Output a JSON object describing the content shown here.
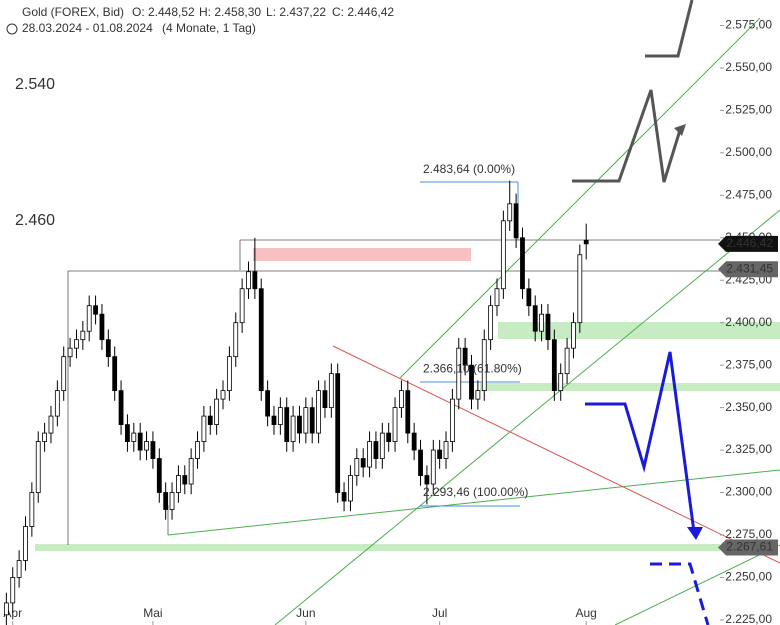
{
  "chart_data": {
    "type": "candlestick",
    "header": {
      "symbol": "Gold (FOREX, Bid)",
      "open": "O: 2.448,52",
      "high": "H: 2.458,30",
      "low": "L: 2.437,22",
      "close": "C: 2.446,42",
      "range": "28.03.2024 - 01.08.2024",
      "period": "(4 Monate, 1 Tag)"
    },
    "open": [
      2228,
      2235,
      2250,
      2260,
      2280,
      2300,
      2330,
      2335,
      2345,
      2360,
      2380,
      2385,
      2390,
      2395,
      2410,
      2405,
      2390,
      2380,
      2360,
      2340,
      2330,
      2335,
      2325,
      2330,
      2320,
      2300,
      2290,
      2300,
      2310,
      2305,
      2320,
      2330,
      2345,
      2340,
      2355,
      2360,
      2380,
      2400,
      2420,
      2430,
      2420,
      2360,
      2345,
      2340,
      2350,
      2330,
      2345,
      2335,
      2350,
      2335,
      2360,
      2350,
      2370,
      2300,
      2295,
      2310,
      2320,
      2315,
      2330,
      2320,
      2335,
      2330,
      2350,
      2360,
      2335,
      2325,
      2310,
      2305,
      2325,
      2320,
      2330,
      2355,
      2385,
      2375,
      2355,
      2360,
      2390,
      2410,
      2420,
      2460,
      2470,
      2450,
      2420,
      2410,
      2395,
      2405,
      2390,
      2360,
      2370,
      2385,
      2400,
      2448.52
    ],
    "high": [
      2241,
      2256,
      2266,
      2286,
      2306,
      2336,
      2341,
      2351,
      2366,
      2386,
      2391,
      2396,
      2401,
      2416,
      2416,
      2411,
      2396,
      2386,
      2366,
      2346,
      2341,
      2341,
      2336,
      2336,
      2326,
      2306,
      2306,
      2316,
      2316,
      2326,
      2336,
      2351,
      2351,
      2361,
      2366,
      2386,
      2406,
      2426,
      2436,
      2450,
      2426,
      2366,
      2351,
      2356,
      2356,
      2351,
      2351,
      2356,
      2356,
      2366,
      2366,
      2376,
      2376,
      2306,
      2316,
      2326,
      2326,
      2336,
      2336,
      2341,
      2341,
      2356,
      2366,
      2366,
      2341,
      2331,
      2316,
      2331,
      2331,
      2336,
      2361,
      2391,
      2391,
      2381,
      2366,
      2396,
      2416,
      2426,
      2466,
      2483.64,
      2476,
      2456,
      2426,
      2416,
      2411,
      2411,
      2396,
      2376,
      2391,
      2406,
      2446,
      2458.3
    ],
    "low": [
      2222,
      2229,
      2244,
      2254,
      2274,
      2294,
      2324,
      2329,
      2339,
      2354,
      2374,
      2379,
      2384,
      2389,
      2399,
      2384,
      2374,
      2354,
      2334,
      2324,
      2324,
      2319,
      2319,
      2314,
      2294,
      2284,
      2284,
      2294,
      2299,
      2299,
      2314,
      2324,
      2334,
      2334,
      2349,
      2354,
      2374,
      2394,
      2414,
      2414,
      2354,
      2339,
      2334,
      2334,
      2324,
      2324,
      2329,
      2329,
      2329,
      2329,
      2344,
      2344,
      2294,
      2289,
      2289,
      2304,
      2309,
      2309,
      2314,
      2314,
      2324,
      2324,
      2344,
      2329,
      2319,
      2304,
      2293,
      2299,
      2314,
      2314,
      2324,
      2349,
      2369,
      2349,
      2349,
      2354,
      2384,
      2404,
      2414,
      2454,
      2444,
      2414,
      2404,
      2389,
      2389,
      2384,
      2354,
      2354,
      2364,
      2379,
      2394,
      2437.22
    ],
    "close": [
      2235,
      2250,
      2260,
      2280,
      2300,
      2330,
      2335,
      2345,
      2360,
      2380,
      2385,
      2390,
      2395,
      2410,
      2405,
      2390,
      2380,
      2360,
      2340,
      2330,
      2335,
      2325,
      2330,
      2320,
      2300,
      2290,
      2300,
      2310,
      2305,
      2320,
      2330,
      2345,
      2340,
      2355,
      2360,
      2380,
      2400,
      2420,
      2430,
      2420,
      2360,
      2345,
      2340,
      2350,
      2330,
      2345,
      2335,
      2350,
      2335,
      2360,
      2350,
      2370,
      2300,
      2295,
      2310,
      2320,
      2315,
      2330,
      2320,
      2335,
      2330,
      2350,
      2360,
      2335,
      2325,
      2310,
      2305,
      2325,
      2320,
      2330,
      2355,
      2385,
      2375,
      2355,
      2360,
      2390,
      2410,
      2420,
      2460,
      2470,
      2450,
      2420,
      2410,
      2395,
      2405,
      2390,
      2360,
      2370,
      2385,
      2400,
      2440,
      2446.42
    ],
    "xlim": [
      -1,
      112
    ],
    "xticks": [
      {
        "value": 1,
        "label": "Apr"
      },
      {
        "value": 23,
        "label": "Mai"
      },
      {
        "value": 47,
        "label": "Jun"
      },
      {
        "value": 68,
        "label": "Jul"
      },
      {
        "value": 91,
        "label": "Aug"
      }
    ],
    "ylim": [
      2222,
      2590
    ],
    "yticks": [
      {
        "value": 2225,
        "label": "2.225,00"
      },
      {
        "value": 2250,
        "label": "2.250,00"
      },
      {
        "value": 2275,
        "label": "2.275,00"
      },
      {
        "value": 2300,
        "label": "2.300,00"
      },
      {
        "value": 2325,
        "label": "2.325,00"
      },
      {
        "value": 2350,
        "label": "2.350,00"
      },
      {
        "value": 2375,
        "label": "2.375,00"
      },
      {
        "value": 2400,
        "label": "2.400,00"
      },
      {
        "value": 2425,
        "label": "2.425,00"
      },
      {
        "value": 2450,
        "label": "2.450,00"
      },
      {
        "value": 2475,
        "label": "2.475,00"
      },
      {
        "value": 2500,
        "label": "2.500,00"
      },
      {
        "value": 2525,
        "label": "2.525,00"
      },
      {
        "value": 2550,
        "label": "2.550,00"
      },
      {
        "value": 2575,
        "label": "2.575,00"
      }
    ],
    "price_labels": [
      {
        "value": 2446.42,
        "label": "2.446,42"
      },
      {
        "value": 2431.45,
        "label": "2.431,45"
      },
      {
        "value": 2267.61,
        "label": "2.267,61"
      }
    ],
    "fib_labels": [
      {
        "value": 2483.64,
        "label": "2.483,64 (0.00%)"
      },
      {
        "value": 2366.1,
        "label": "2.366,10 (61.80%)"
      },
      {
        "value": 2293.46,
        "label": "2.293,46 (100.00%)"
      }
    ],
    "side_labels": [
      {
        "value": 2540,
        "label": "2.540"
      },
      {
        "value": 2460,
        "label": "2.460"
      }
    ]
  }
}
